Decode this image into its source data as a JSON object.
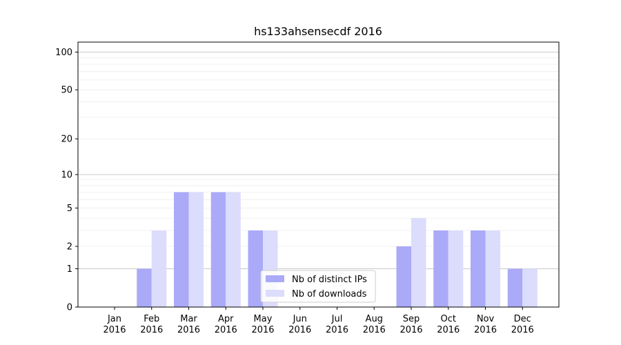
{
  "chart_data": {
    "type": "bar",
    "title": "hs133ahsensecdf 2016",
    "xlabel": "",
    "ylabel": "",
    "yscale": "log(1+y)",
    "ylim": [
      0,
      120
    ],
    "yticks": [
      0,
      1,
      2,
      5,
      10,
      20,
      50,
      100
    ],
    "grid": true,
    "legend_position": "bottom-center",
    "categories": [
      {
        "month": "Jan",
        "year": "2016"
      },
      {
        "month": "Feb",
        "year": "2016"
      },
      {
        "month": "Mar",
        "year": "2016"
      },
      {
        "month": "Apr",
        "year": "2016"
      },
      {
        "month": "May",
        "year": "2016"
      },
      {
        "month": "Jun",
        "year": "2016"
      },
      {
        "month": "Jul",
        "year": "2016"
      },
      {
        "month": "Aug",
        "year": "2016"
      },
      {
        "month": "Sep",
        "year": "2016"
      },
      {
        "month": "Oct",
        "year": "2016"
      },
      {
        "month": "Nov",
        "year": "2016"
      },
      {
        "month": "Dec",
        "year": "2016"
      }
    ],
    "series": [
      {
        "name": "Nb of distinct IPs",
        "color": "#aaaaf8",
        "values": [
          0,
          1,
          7,
          7,
          3,
          0,
          0,
          0,
          2,
          3,
          3,
          1
        ]
      },
      {
        "name": "Nb of downloads",
        "color": "#dcdcfc",
        "values": [
          0,
          3,
          7,
          7,
          3,
          0,
          0,
          0,
          4,
          3,
          3,
          1
        ]
      }
    ]
  }
}
